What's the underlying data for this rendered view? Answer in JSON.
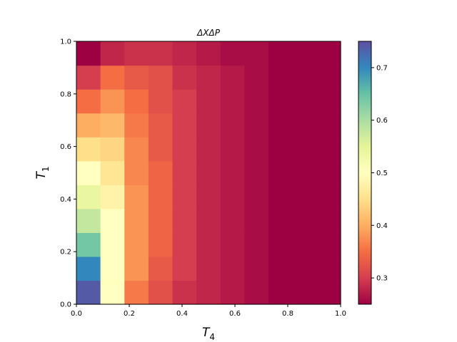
{
  "chart_data": {
    "type": "heatmap",
    "title": "ΔXΔP",
    "xlabel": {
      "main": "T",
      "sub": "4"
    },
    "ylabel": {
      "main": "T",
      "sub": "1"
    },
    "xlim": [
      0,
      1
    ],
    "ylim": [
      0,
      1
    ],
    "xticks": [
      "0.0",
      "0.2",
      "0.4",
      "0.6",
      "0.8",
      "1.0"
    ],
    "yticks": [
      "0.0",
      "0.2",
      "0.4",
      "0.6",
      "0.8",
      "1.0"
    ],
    "colorscale": "Spectral",
    "color_range": [
      0.25,
      0.75
    ],
    "colorbar_ticks": [
      "0.3",
      "0.4",
      "0.5",
      "0.6",
      "0.7"
    ],
    "grid": false,
    "n_cols": 11,
    "n_rows": 11,
    "z_rows_bottom_to_top": [
      [
        0.74,
        0.5,
        0.36,
        0.32,
        0.29,
        0.28,
        0.27,
        0.26,
        0.25,
        0.25,
        0.25
      ],
      [
        0.7,
        0.5,
        0.38,
        0.33,
        0.3,
        0.28,
        0.27,
        0.26,
        0.25,
        0.25,
        0.25
      ],
      [
        0.64,
        0.5,
        0.38,
        0.34,
        0.3,
        0.28,
        0.27,
        0.26,
        0.25,
        0.25,
        0.25
      ],
      [
        0.58,
        0.5,
        0.38,
        0.34,
        0.3,
        0.28,
        0.27,
        0.26,
        0.25,
        0.25,
        0.25
      ],
      [
        0.54,
        0.48,
        0.38,
        0.34,
        0.3,
        0.28,
        0.27,
        0.26,
        0.25,
        0.25,
        0.25
      ],
      [
        0.5,
        0.46,
        0.37,
        0.34,
        0.3,
        0.28,
        0.27,
        0.26,
        0.25,
        0.25,
        0.25
      ],
      [
        0.45,
        0.44,
        0.37,
        0.33,
        0.3,
        0.28,
        0.27,
        0.26,
        0.25,
        0.25,
        0.25
      ],
      [
        0.4,
        0.41,
        0.36,
        0.33,
        0.3,
        0.28,
        0.27,
        0.26,
        0.25,
        0.25,
        0.25
      ],
      [
        0.35,
        0.38,
        0.35,
        0.32,
        0.3,
        0.28,
        0.27,
        0.26,
        0.25,
        0.25,
        0.25
      ],
      [
        0.3,
        0.35,
        0.33,
        0.32,
        0.29,
        0.28,
        0.27,
        0.26,
        0.25,
        0.25,
        0.25
      ],
      [
        0.25,
        0.28,
        0.29,
        0.29,
        0.28,
        0.27,
        0.26,
        0.26,
        0.25,
        0.25,
        0.25
      ]
    ]
  }
}
